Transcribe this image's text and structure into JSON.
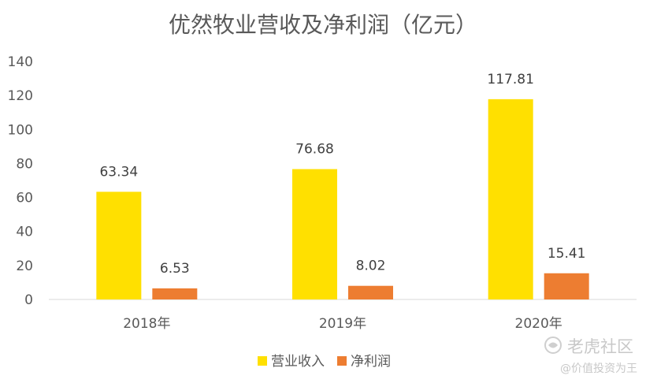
{
  "chart_data": {
    "type": "bar",
    "title": "优然牧业营收及净利润（亿元）",
    "xlabel": "",
    "ylabel": "",
    "categories": [
      "2018年",
      "2019年",
      "2020年"
    ],
    "series": [
      {
        "name": "营业收入",
        "color": "#FFE000",
        "values": [
          63.34,
          76.68,
          117.81
        ]
      },
      {
        "name": "净利润",
        "color": "#ED7D31",
        "values": [
          6.53,
          8.02,
          15.41
        ]
      }
    ],
    "value_labels": [
      [
        "63.34",
        "76.68",
        "117.81"
      ],
      [
        "6.53",
        "8.02",
        "15.41"
      ]
    ],
    "ylim": [
      0,
      140
    ],
    "yticks": [
      0,
      20,
      40,
      60,
      80,
      100,
      120,
      140
    ],
    "ytick_labels": [
      "0",
      "20",
      "40",
      "60",
      "80",
      "100",
      "120",
      "140"
    ],
    "grid": false,
    "legend": "bottom"
  },
  "watermark": {
    "brand": "老虎社区",
    "author": "@价值投资为王",
    "icon": "tiger-logo-icon"
  }
}
